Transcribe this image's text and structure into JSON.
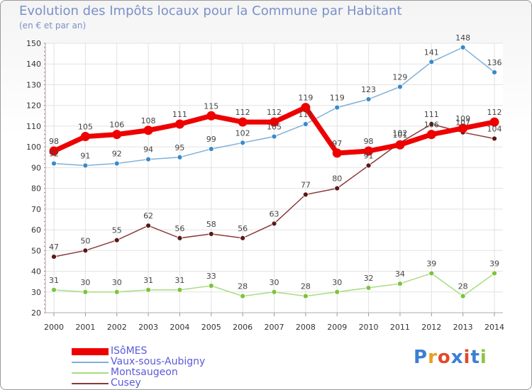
{
  "title": "Evolution des Impôts locaux pour la Commune par Habitant",
  "subtitle": "(en € et par an)",
  "brand": {
    "text": "Proxiti",
    "colors": [
      "#3a7fd4",
      "#e8a020",
      "#e04a2a",
      "#3a7fd4",
      "#e04a2a",
      "#3a7fd4",
      "#8ac440"
    ]
  },
  "chart_data": {
    "type": "line",
    "title": "Evolution des Impôts locaux pour la Commune par Habitant",
    "subtitle": "(en € et par an)",
    "x": [
      "2000",
      "2001",
      "2002",
      "2003",
      "2004",
      "2005",
      "2006",
      "2007",
      "2008",
      "2009",
      "2010",
      "2011",
      "2012",
      "2013",
      "2014"
    ],
    "ylim": [
      20,
      150
    ],
    "yticks": [
      20,
      30,
      40,
      50,
      60,
      70,
      80,
      90,
      100,
      110,
      120,
      130,
      140,
      150
    ],
    "grid": true,
    "legend_position": "bottom-left",
    "series": [
      {
        "name": "Vaux-sous-Aubigny",
        "color": "#7fb0d8",
        "marker": "#3a8ac8",
        "values": [
          92,
          91,
          92,
          94,
          95,
          99,
          102,
          105,
          111,
          119,
          123,
          129,
          141,
          148,
          136
        ],
        "labels": [
          "92",
          "91",
          "92",
          "94",
          "95",
          "99",
          "102",
          "105",
          "111",
          "119",
          "123",
          "129",
          "141",
          "148",
          "136"
        ]
      },
      {
        "name": "Montsaugeon",
        "color": "#a8dc80",
        "marker": "#7cc43a",
        "values": [
          31,
          30,
          30,
          31,
          31,
          33,
          28,
          30,
          28,
          30,
          32,
          34,
          39,
          28,
          39
        ],
        "labels": [
          "31",
          "30",
          "30",
          "31",
          "31",
          "33",
          "28",
          "30",
          "28",
          "30",
          "32",
          "34",
          "39",
          "28",
          "39"
        ]
      },
      {
        "name": "Cusey",
        "color": "#8a3a3a",
        "marker": "#5a1818",
        "values": [
          47,
          50,
          55,
          62,
          56,
          58,
          56,
          63,
          77,
          80,
          91,
          102,
          111,
          107,
          104
        ],
        "labels": [
          "47",
          "50",
          "55",
          "62",
          "56",
          "58",
          "56",
          "63",
          "77",
          "80",
          "91",
          "102",
          "111",
          "107",
          "104"
        ]
      },
      {
        "name": "ISôMES",
        "color": "#ee0000",
        "marker": "#ee0000",
        "values": [
          98,
          105,
          106,
          108,
          111,
          115,
          112,
          112,
          119,
          97,
          98,
          101,
          106,
          109,
          112
        ],
        "labels": [
          "98",
          "105",
          "106",
          "108",
          "111",
          "115",
          "112",
          "112",
          "119",
          "97",
          "98",
          "101",
          "106",
          "109",
          "112"
        ]
      }
    ],
    "legend": [
      "ISôMES",
      "Vaux-sous-Aubigny",
      "Montsaugeon",
      "Cusey"
    ]
  },
  "legend": [
    {
      "label": "ISôMES",
      "color": "#ee0000"
    },
    {
      "label": "Vaux-sous-Aubigny",
      "color": "#7fb0d8"
    },
    {
      "label": "Montsaugeon",
      "color": "#a8dc80"
    },
    {
      "label": "Cusey",
      "color": "#8a3a3a"
    }
  ]
}
